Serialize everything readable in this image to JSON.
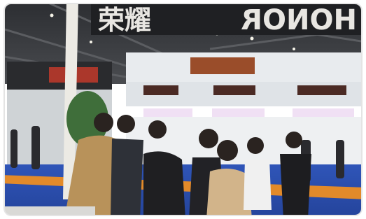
{
  "scene": {
    "sign_chinese": "荣耀",
    "sign_latin": "HONOR"
  }
}
